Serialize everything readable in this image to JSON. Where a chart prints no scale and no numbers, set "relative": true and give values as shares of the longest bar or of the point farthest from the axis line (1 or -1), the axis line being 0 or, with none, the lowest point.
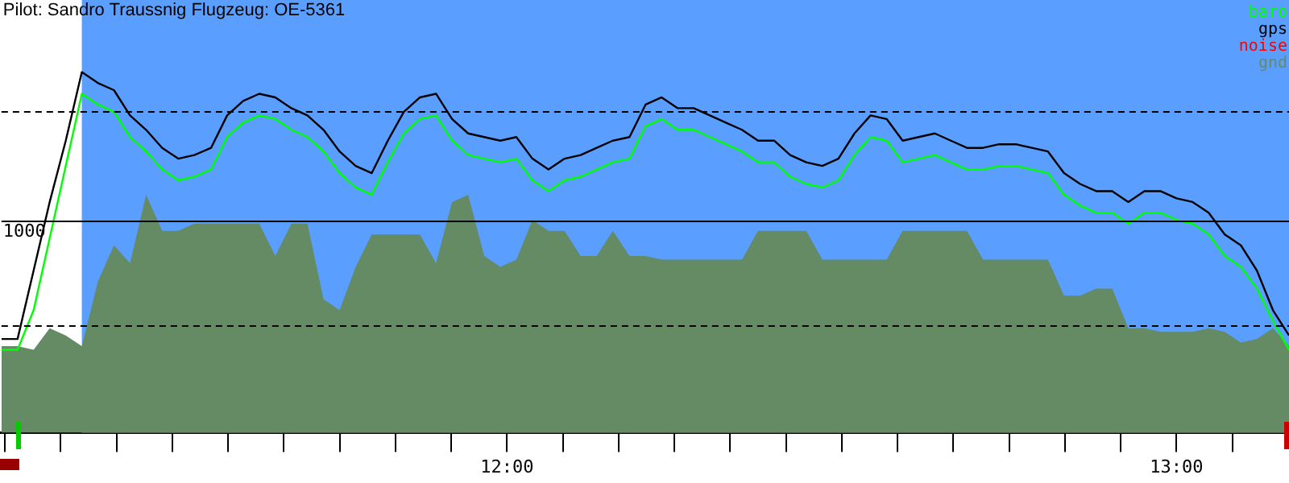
{
  "chart_data": {
    "type": "line",
    "title": "Pilot: Sandro Traussnig Flugzeug: OE-5361",
    "relative": true,
    "legend": "top right",
    "grid": false,
    "x": [
      11.245,
      11.269,
      11.293,
      11.317,
      11.341,
      11.365,
      11.389,
      11.413,
      11.437,
      11.461,
      11.485,
      11.509,
      11.533,
      11.558,
      11.582,
      11.606,
      11.63,
      11.654,
      11.678,
      11.702,
      11.726,
      11.75,
      11.774,
      11.798,
      11.822,
      11.846,
      11.87,
      11.894,
      11.918,
      11.942,
      11.966,
      11.99,
      12.014,
      12.038,
      12.062,
      12.086,
      12.11,
      12.134,
      12.158,
      12.183,
      12.207,
      12.231,
      12.255,
      12.279,
      12.303,
      12.327,
      12.351,
      12.375,
      12.399,
      12.423,
      12.447,
      12.471,
      12.495,
      12.519,
      12.543,
      12.567,
      12.591,
      12.615,
      12.639,
      12.663,
      12.687,
      12.711,
      12.735,
      12.76,
      12.784,
      12.808,
      12.832,
      12.856,
      12.88,
      12.904,
      12.928,
      12.952,
      12.976,
      13.0,
      13.024,
      13.048,
      13.072,
      13.096,
      13.12,
      13.144,
      13.168
    ],
    "xlim": [
      11.245,
      13.168
    ],
    "xticks": [
      {
        "value": 11.25,
        "label": null
      },
      {
        "value": 11.3333,
        "label": null
      },
      {
        "value": 11.4167,
        "label": null
      },
      {
        "value": 11.5,
        "label": null
      },
      {
        "value": 11.5833,
        "label": null
      },
      {
        "value": 11.6667,
        "label": null
      },
      {
        "value": 11.75,
        "label": null
      },
      {
        "value": 11.8333,
        "label": null
      },
      {
        "value": 11.9167,
        "label": null
      },
      {
        "value": 12,
        "label": "12:00"
      },
      {
        "value": 12.0833,
        "label": null
      },
      {
        "value": 12.1667,
        "label": null
      },
      {
        "value": 12.25,
        "label": null
      },
      {
        "value": 12.3333,
        "label": null
      },
      {
        "value": 12.4167,
        "label": null
      },
      {
        "value": 12.5,
        "label": null
      },
      {
        "value": 12.5833,
        "label": null
      },
      {
        "value": 12.6667,
        "label": null
      },
      {
        "value": 12.75,
        "label": null
      },
      {
        "value": 12.8333,
        "label": null
      },
      {
        "value": 12.9167,
        "label": null
      },
      {
        "value": 13,
        "label": "13:00"
      },
      {
        "value": 13.0833,
        "label": null
      }
    ],
    "tick_labels": "x",
    "series": [
      {
        "name": "baro",
        "color": "#00ff00",
        "values": [
          0.23,
          0.23,
          0.34,
          0.54,
          0.74,
          0.94,
          0.91,
          0.89,
          0.82,
          0.78,
          0.73,
          0.7,
          0.71,
          0.73,
          0.82,
          0.86,
          0.88,
          0.87,
          0.84,
          0.82,
          0.78,
          0.72,
          0.68,
          0.66,
          0.75,
          0.83,
          0.87,
          0.88,
          0.81,
          0.77,
          0.76,
          0.75,
          0.76,
          0.7,
          0.67,
          0.7,
          0.71,
          0.73,
          0.75,
          0.76,
          0.85,
          0.87,
          0.84,
          0.84,
          0.82,
          0.8,
          0.78,
          0.75,
          0.75,
          0.71,
          0.69,
          0.68,
          0.7,
          0.77,
          0.82,
          0.81,
          0.75,
          0.76,
          0.77,
          0.75,
          0.73,
          0.73,
          0.74,
          0.74,
          0.73,
          0.72,
          0.66,
          0.63,
          0.61,
          0.61,
          0.58,
          0.61,
          0.61,
          0.59,
          0.58,
          0.55,
          0.49,
          0.46,
          0.4,
          0.31,
          0.23
        ]
      },
      {
        "name": "gps",
        "color": "#000000",
        "values": [
          0.26,
          0.26,
          0.45,
          0.64,
          0.81,
          1.0,
          0.97,
          0.95,
          0.88,
          0.84,
          0.79,
          0.76,
          0.77,
          0.79,
          0.88,
          0.92,
          0.94,
          0.93,
          0.9,
          0.88,
          0.84,
          0.78,
          0.74,
          0.72,
          0.81,
          0.89,
          0.93,
          0.94,
          0.87,
          0.83,
          0.82,
          0.81,
          0.82,
          0.76,
          0.73,
          0.76,
          0.77,
          0.79,
          0.81,
          0.82,
          0.91,
          0.93,
          0.9,
          0.9,
          0.88,
          0.86,
          0.84,
          0.81,
          0.81,
          0.77,
          0.75,
          0.74,
          0.76,
          0.83,
          0.88,
          0.87,
          0.81,
          0.82,
          0.83,
          0.81,
          0.79,
          0.79,
          0.8,
          0.8,
          0.79,
          0.78,
          0.72,
          0.69,
          0.67,
          0.67,
          0.64,
          0.67,
          0.67,
          0.65,
          0.64,
          0.61,
          0.55,
          0.52,
          0.45,
          0.34,
          0.27
        ]
      },
      {
        "name": "noise",
        "color": "#ff0000",
        "values": [
          null,
          null,
          null,
          null,
          null,
          null,
          null,
          null,
          null,
          null,
          null,
          null,
          null,
          null,
          null,
          null,
          null,
          null,
          null,
          null,
          null,
          null,
          null,
          null,
          null,
          null,
          null,
          null,
          null,
          null,
          null,
          null,
          null,
          null,
          null,
          null,
          null,
          null,
          null,
          null,
          null,
          null,
          null,
          null,
          null,
          null,
          null,
          null,
          null,
          null,
          null,
          null,
          null,
          null,
          null,
          null,
          null,
          null,
          null,
          null,
          null,
          null,
          null,
          null,
          null,
          null,
          null,
          null,
          null,
          null,
          null,
          null,
          null,
          null,
          null,
          null,
          null,
          null,
          null,
          null,
          null
        ]
      },
      {
        "name": "gnd",
        "type": "area",
        "color": "#658b65",
        "values": [
          0.24,
          0.24,
          0.23,
          0.29,
          0.27,
          0.24,
          0.42,
          0.52,
          0.47,
          0.66,
          0.56,
          0.56,
          0.58,
          0.58,
          0.58,
          0.58,
          0.58,
          0.49,
          0.58,
          0.58,
          0.37,
          0.34,
          0.46,
          0.55,
          0.55,
          0.55,
          0.55,
          0.47,
          0.64,
          0.66,
          0.49,
          0.46,
          0.48,
          0.59,
          0.56,
          0.56,
          0.49,
          0.49,
          0.56,
          0.49,
          0.49,
          0.48,
          0.48,
          0.48,
          0.48,
          0.48,
          0.48,
          0.56,
          0.56,
          0.56,
          0.56,
          0.48,
          0.48,
          0.48,
          0.48,
          0.48,
          0.56,
          0.56,
          0.56,
          0.56,
          0.56,
          0.48,
          0.48,
          0.48,
          0.48,
          0.48,
          0.38,
          0.38,
          0.4,
          0.4,
          0.29,
          0.29,
          0.28,
          0.28,
          0.28,
          0.29,
          0.28,
          0.25,
          0.26,
          0.29,
          0.24
        ]
      }
    ],
    "annotations": [
      "1000"
    ],
    "bands": [
      {
        "axis": "x",
        "from": 11.365,
        "to": 13.168,
        "color": "#5a9fff"
      }
    ],
    "ref_lines": [
      {
        "axis": "y",
        "value": 0.89,
        "line_style": "dashed"
      },
      {
        "axis": "y",
        "value": 0.59,
        "line_style": "solid"
      },
      {
        "axis": "y",
        "value": 0.3,
        "line_style": "dashed"
      }
    ]
  }
}
